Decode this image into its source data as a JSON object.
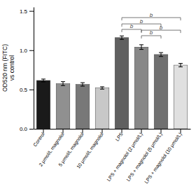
{
  "chart_data": {
    "type": "bar",
    "ylabel": "OD520 nm (FITC)\nvs control",
    "categories": [
      "Control",
      "2 μmol/L magnolol",
      "5 μmol/L magnolol",
      "10 μmol/L magnolol",
      "LPS",
      "LPS + magnolol (2 μmol/L)",
      "LPS + magnolol (5 μmol/L)",
      "LPS + magnolol (10 μmol/L)"
    ],
    "values": [
      0.615,
      0.575,
      0.565,
      0.52,
      1.16,
      1.04,
      0.945,
      0.81
    ],
    "errors": [
      0.018,
      0.025,
      0.022,
      0.015,
      0.022,
      0.03,
      0.025,
      0.022
    ],
    "colors": [
      "#1a1a1a",
      "#909090",
      "#787878",
      "#c8c8c8",
      "#606060",
      "#888888",
      "#707070",
      "#e0e0e0"
    ],
    "ylim": [
      0.0,
      1.55
    ],
    "yticks": [
      {
        "value": 0.0,
        "label": "0.0"
      },
      0.5,
      {
        "value": 1.0,
        "label": "1.0"
      },
      1.5
    ],
    "annotations": [
      {
        "text": "b",
        "start": "LPS",
        "end": "LPS + magnolol (2 μmol/L)",
        "y": 1.265
      },
      {
        "text": "b",
        "start": "LPS",
        "end": "LPS + magnolol (5 μmol/L)",
        "y": 1.335
      },
      {
        "text": "b",
        "start": "LPS",
        "end": "LPS + magnolol (10 μmol/L)",
        "y": 1.415
      },
      {
        "text": "b",
        "start": "LPS + magnolol (2 μmol/L)",
        "end": "LPS + magnolol (5 μmol/L)",
        "y": 1.185
      },
      {
        "text": "b",
        "start": "LPS + magnolol (2 μmol/L)",
        "end": "LPS + magnolol (10 μmol/L)",
        "y": 1.255
      }
    ],
    "grid": false
  }
}
